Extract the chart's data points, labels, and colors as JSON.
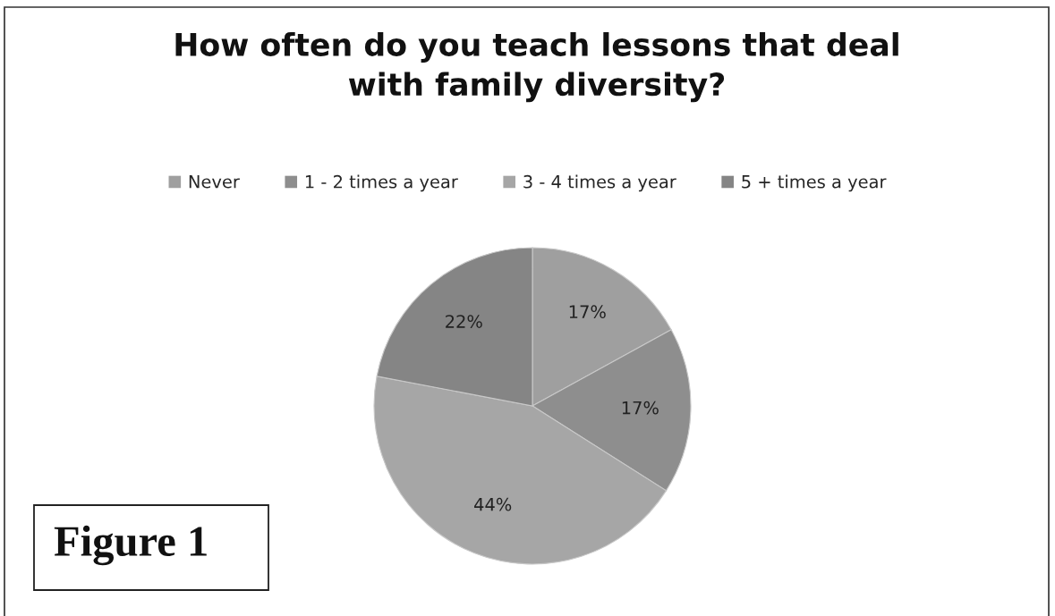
{
  "chart_data": {
    "type": "pie",
    "title": "How often do you teach lessons that deal\nwith family diversity?",
    "categories": [
      "Never",
      "1 - 2 times a year",
      "3 - 4 times a year",
      "5 + times a year"
    ],
    "values": [
      17,
      17,
      44,
      22
    ],
    "colors": [
      "#9f9f9f",
      "#8e8e8e",
      "#a6a6a6",
      "#858585"
    ],
    "value_labels": [
      "17%",
      "17%",
      "44%",
      "22%"
    ],
    "legend": "top",
    "annotations": [
      "Figure 1"
    ]
  }
}
